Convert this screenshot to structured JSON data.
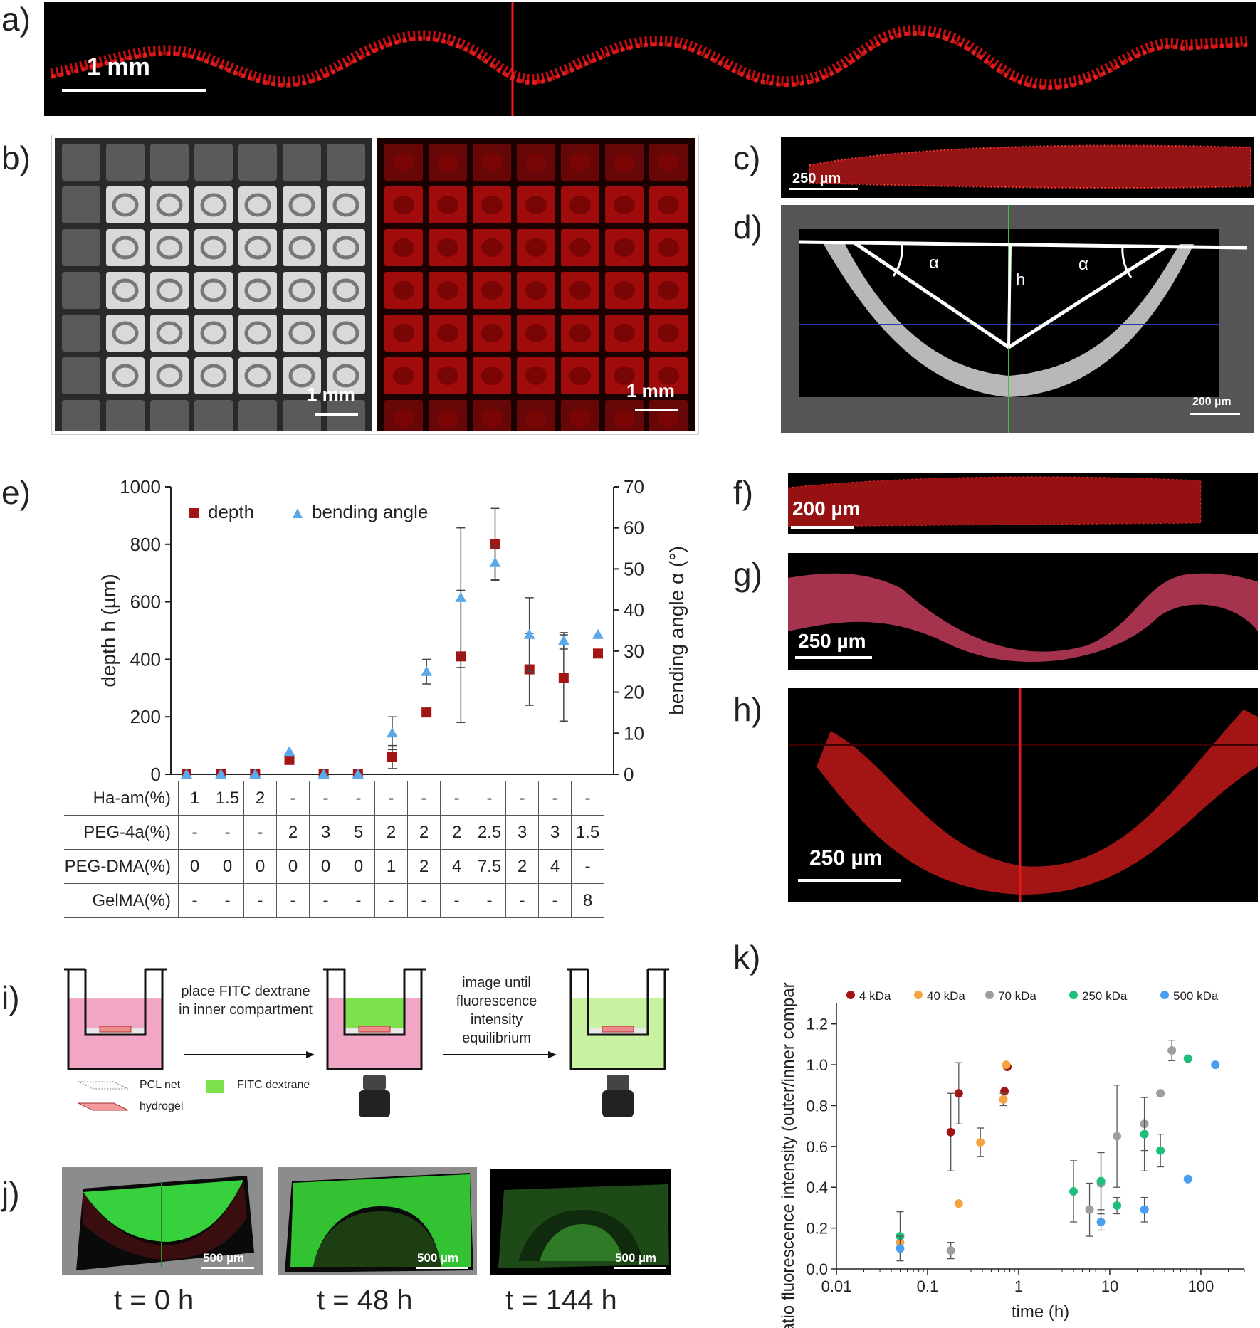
{
  "panel_labels": {
    "a": "a)",
    "b": "b)",
    "c": "c)",
    "d": "d)",
    "e": "e)",
    "f": "f)",
    "g": "g)",
    "h": "h)",
    "i": "i)",
    "j": "j)",
    "k": "k)"
  },
  "scale_bars": {
    "a": "1 mm",
    "b_left": "1 mm",
    "b_right": "1 mm",
    "c": "250 µm",
    "d": "200 µm",
    "f": "200 µm",
    "g": "250 µm",
    "h": "250 µm",
    "j1": "500 µm",
    "j2": "500 µm",
    "j3": "500 µm"
  },
  "panel_d_labels": {
    "alpha_left": "α",
    "alpha_right": "α",
    "h": "h"
  },
  "panel_i": {
    "step1": "place FITC dextrane in inner compartment",
    "step2": "image until fluorescence intensity equilibrium",
    "legend_pcl": "PCL net",
    "legend_hydrogel": "hydrogel",
    "legend_fitc": "FITC dextrane"
  },
  "panel_j": {
    "t0": "t = 0 h",
    "t48": "t = 48 h",
    "t144": "t = 144 h"
  },
  "table_e": {
    "rows": [
      {
        "label": "Ha-am(%)",
        "values": [
          "1",
          "1.5",
          "2",
          "-",
          "-",
          "-",
          "-",
          "-",
          "-",
          "-",
          "-",
          "-",
          "-"
        ]
      },
      {
        "label": "PEG-4a(%)",
        "values": [
          "-",
          "-",
          "-",
          "2",
          "3",
          "5",
          "2",
          "2",
          "2",
          "2.5",
          "3",
          "3",
          "1.5"
        ]
      },
      {
        "label": "PEG-DMA(%)",
        "values": [
          "0",
          "0",
          "0",
          "0",
          "0",
          "0",
          "1",
          "2",
          "4",
          "7.5",
          "2",
          "4",
          "-"
        ]
      },
      {
        "label": "GelMA(%)",
        "values": [
          "-",
          "-",
          "-",
          "-",
          "-",
          "-",
          "-",
          "-",
          "-",
          "-",
          "-",
          "-",
          "8"
        ]
      }
    ]
  },
  "chart_data": [
    {
      "type": "scatter",
      "panel": "e",
      "ylabel": "depth h (µm)",
      "y2label": "bending angle α (°)",
      "ylim": [
        0,
        1000
      ],
      "y2lim": [
        0,
        70
      ],
      "yticks": [
        0,
        200,
        400,
        600,
        800,
        1000
      ],
      "y2ticks": [
        0,
        10,
        20,
        30,
        40,
        50,
        60,
        70
      ],
      "legend_position": "top-left",
      "x": [
        1,
        2,
        3,
        4,
        5,
        6,
        7,
        8,
        9,
        10,
        11,
        12,
        13
      ],
      "series": [
        {
          "name": "depth",
          "axis": "left",
          "marker": "square",
          "color": "#a31515",
          "values": [
            0,
            0,
            0,
            50,
            0,
            0,
            60,
            215,
            410,
            800,
            365,
            335,
            420
          ],
          "errors": [
            0,
            0,
            0,
            0,
            0,
            0,
            40,
            15,
            230,
            125,
            125,
            150,
            0
          ]
        },
        {
          "name": "bending angle",
          "axis": "right",
          "marker": "triangle",
          "color": "#5aa9ea",
          "values": [
            0,
            0,
            0,
            5.5,
            0,
            0,
            10,
            25,
            43,
            51.5,
            34,
            32.5,
            34
          ],
          "errors": [
            0,
            0,
            0,
            0,
            0,
            0,
            4,
            3,
            17,
            4,
            9,
            2,
            0
          ]
        }
      ]
    },
    {
      "type": "scatter",
      "panel": "k",
      "xlabel": "time (h)",
      "ylabel": "ratio fluorescence intensity (outer/inner compartment)",
      "xscale": "log",
      "xlim": [
        0.01,
        300
      ],
      "ylim": [
        0,
        1.3
      ],
      "xticks": [
        0.01,
        0.1,
        1,
        10,
        100
      ],
      "xtick_labels": [
        "0.01",
        "0.1",
        "1",
        "10",
        "100"
      ],
      "yticks": [
        0.0,
        0.2,
        0.4,
        0.6,
        0.8,
        1.0,
        1.2
      ],
      "ytick_labels": [
        "0.0",
        "0.2",
        "0.4",
        "0.6",
        "0.8",
        "1.0",
        "1.2"
      ],
      "legend_position": "top",
      "series": [
        {
          "name": "4 kDa",
          "color": "#a31515",
          "x": [
            0.18,
            0.22,
            0.7,
            0.75
          ],
          "y": [
            0.67,
            0.86,
            0.87,
            0.99
          ],
          "errors": [
            0.19,
            0.15,
            0,
            0
          ]
        },
        {
          "name": "40 kDa",
          "color": "#f5a340",
          "x": [
            0.05,
            0.22,
            0.38,
            0.68,
            0.73
          ],
          "y": [
            0.13,
            0.32,
            0.62,
            0.83,
            1.0
          ],
          "errors": [
            0,
            0,
            0.07,
            0.03,
            0
          ]
        },
        {
          "name": "70 kDa",
          "color": "#9e9e9e",
          "x": [
            0.18,
            6,
            8,
            12,
            24,
            36,
            48
          ],
          "y": [
            0.09,
            0.29,
            0.42,
            0.65,
            0.71,
            0.86,
            1.07
          ],
          "errors": [
            0.04,
            0.13,
            0.15,
            0.25,
            0.13,
            0,
            0.05
          ]
        },
        {
          "name": "250 kDa",
          "color": "#1fbf7a",
          "x": [
            0.05,
            4,
            8,
            12,
            24,
            36,
            72
          ],
          "y": [
            0.16,
            0.38,
            0.43,
            0.31,
            0.66,
            0.58,
            1.03
          ],
          "errors": [
            0.12,
            0.15,
            0.14,
            0.04,
            0.18,
            0.08,
            0
          ]
        },
        {
          "name": "500 kDa",
          "color": "#4a9ef0",
          "x": [
            0.05,
            8,
            24,
            72,
            144
          ],
          "y": [
            0.1,
            0.23,
            0.29,
            0.44,
            1.0
          ],
          "errors": [
            0.06,
            0.04,
            0.06,
            0,
            0
          ]
        }
      ]
    }
  ]
}
